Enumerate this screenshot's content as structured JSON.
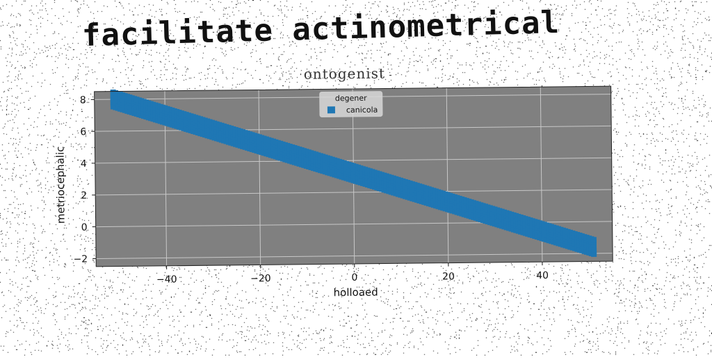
{
  "page": {
    "title": "facilitate actinometrical"
  },
  "chart_data": {
    "type": "scatter",
    "title": "ontogenist",
    "xlabel": "holloaed",
    "ylabel": "metriocephalic",
    "xlim": [
      -55,
      55
    ],
    "ylim": [
      -2.5,
      8.5
    ],
    "xticks": [
      -40,
      -20,
      0,
      20,
      40
    ],
    "yticks": [
      -2,
      0,
      2,
      4,
      6,
      8
    ],
    "xtick_labels": [
      "−40",
      "−20",
      "0",
      "20",
      "40"
    ],
    "ytick_labels": [
      "−2",
      "0",
      "2",
      "4",
      "6",
      "8"
    ],
    "grid": true,
    "legend": {
      "title": "degener",
      "placement": "top-center"
    },
    "background_color": "#808080",
    "series": [
      {
        "name": "canicola",
        "color": "#1f77b4",
        "marker": "square",
        "x_range": [
          -51,
          51
        ],
        "y_at_x_start": 8.0,
        "y_at_x_end": -1.6,
        "slope": -0.094,
        "intercept": 3.2
      }
    ]
  }
}
